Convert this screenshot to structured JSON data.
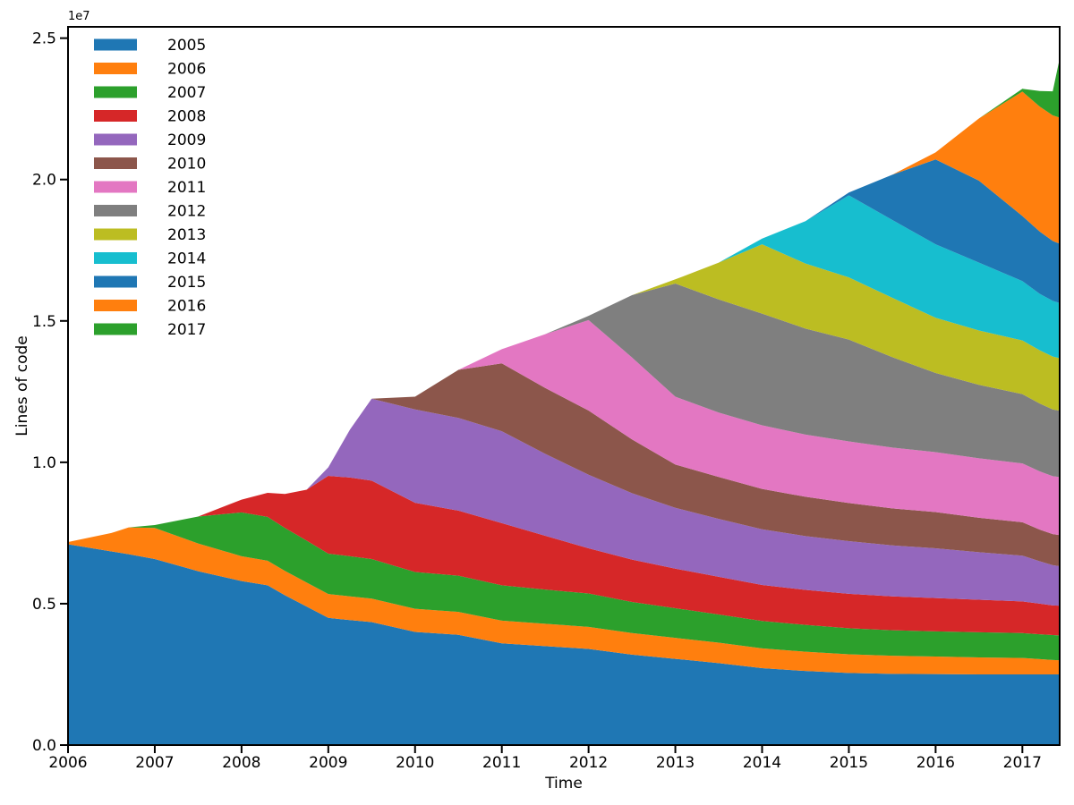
{
  "figure": {
    "background": "#ffffff"
  },
  "chart_data": {
    "type": "area",
    "stacked": true,
    "title": "",
    "xlabel": "Time",
    "ylabel": "Lines of code",
    "offset_text": "1e7",
    "grid": false,
    "legend_position": "upper left",
    "value_unit": "lines of code (values stored in millions)",
    "xlim": [
      2006,
      2017.43
    ],
    "ylim_millions": [
      0,
      25.4
    ],
    "x_ticks": [
      2006,
      2007,
      2008,
      2009,
      2010,
      2011,
      2012,
      2013,
      2014,
      2015,
      2016,
      2017
    ],
    "y_ticks_1e7": [
      0.0,
      0.5,
      1.0,
      1.5,
      2.0,
      2.5
    ],
    "y_tick_labels": [
      "0.0",
      "0.5",
      "1.0",
      "1.5",
      "2.0",
      "2.5"
    ],
    "x": [
      2006,
      2006.5,
      2006.7,
      2007,
      2007.5,
      2008,
      2008.3,
      2008.5,
      2008.75,
      2009,
      2009.25,
      2009.5,
      2010,
      2010.5,
      2011,
      2011.5,
      2012,
      2012.5,
      2013,
      2013.5,
      2014,
      2014.5,
      2015,
      2015.5,
      2016,
      2016.5,
      2017,
      2017.2,
      2017.35,
      2017.42
    ],
    "series": [
      {
        "name": "2005",
        "color": "#1f77b4",
        "values_millions": [
          7.1,
          6.85,
          6.75,
          6.58,
          6.15,
          5.8,
          5.65,
          5.3,
          4.9,
          4.5,
          4.42,
          4.35,
          4.0,
          3.9,
          3.6,
          3.5,
          3.4,
          3.2,
          3.05,
          2.9,
          2.72,
          2.62,
          2.55,
          2.52,
          2.51,
          2.5,
          2.5,
          2.5,
          2.5,
          2.5
        ]
      },
      {
        "name": "2006",
        "color": "#ff7f0e",
        "values_millions": [
          0.08,
          0.65,
          0.95,
          1.1,
          0.98,
          0.88,
          0.87,
          0.86,
          0.85,
          0.84,
          0.84,
          0.83,
          0.82,
          0.81,
          0.8,
          0.79,
          0.78,
          0.76,
          0.74,
          0.72,
          0.7,
          0.68,
          0.66,
          0.64,
          0.62,
          0.6,
          0.58,
          0.54,
          0.51,
          0.5
        ]
      },
      {
        "name": "2007",
        "color": "#2ca02c",
        "values_millions": [
          0,
          0,
          0,
          0.1,
          0.95,
          1.55,
          1.55,
          1.52,
          1.48,
          1.43,
          1.42,
          1.4,
          1.3,
          1.28,
          1.25,
          1.21,
          1.18,
          1.1,
          1.05,
          1.0,
          0.97,
          0.95,
          0.92,
          0.9,
          0.89,
          0.89,
          0.88,
          0.88,
          0.88,
          0.88
        ]
      },
      {
        "name": "2008",
        "color": "#d62728",
        "values_millions": [
          0,
          0,
          0,
          0,
          0,
          0.45,
          0.85,
          1.2,
          1.8,
          2.75,
          2.78,
          2.77,
          2.45,
          2.3,
          2.2,
          1.9,
          1.6,
          1.5,
          1.4,
          1.33,
          1.27,
          1.24,
          1.22,
          1.2,
          1.18,
          1.15,
          1.12,
          1.08,
          1.05,
          1.05
        ]
      },
      {
        "name": "2009",
        "color": "#9467bd",
        "values_millions": [
          0,
          0,
          0,
          0,
          0,
          0,
          0,
          0,
          0,
          0.3,
          1.7,
          2.9,
          3.3,
          3.28,
          3.25,
          2.9,
          2.6,
          2.35,
          2.15,
          2.05,
          1.97,
          1.9,
          1.86,
          1.8,
          1.76,
          1.68,
          1.62,
          1.5,
          1.42,
          1.4
        ]
      },
      {
        "name": "2010",
        "color": "#8c564b",
        "values_millions": [
          0,
          0,
          0,
          0,
          0,
          0,
          0,
          0,
          0,
          0,
          0,
          0,
          0.45,
          1.7,
          2.4,
          2.33,
          2.27,
          1.9,
          1.53,
          1.48,
          1.43,
          1.39,
          1.35,
          1.31,
          1.28,
          1.22,
          1.18,
          1.12,
          1.1,
          1.1
        ]
      },
      {
        "name": "2011",
        "color": "#e377c2",
        "values_millions": [
          0,
          0,
          0,
          0,
          0,
          0,
          0,
          0,
          0,
          0,
          0,
          0,
          0,
          0,
          0.5,
          1.9,
          3.2,
          2.9,
          2.4,
          2.28,
          2.25,
          2.2,
          2.18,
          2.15,
          2.12,
          2.1,
          2.08,
          2.06,
          2.05,
          2.05
        ]
      },
      {
        "name": "2012",
        "color": "#7f7f7f",
        "values_millions": [
          0,
          0,
          0,
          0,
          0,
          0,
          0,
          0,
          0,
          0,
          0,
          0,
          0,
          0,
          0,
          0,
          0.15,
          2.2,
          4.0,
          4.0,
          3.95,
          3.75,
          3.6,
          3.2,
          2.8,
          2.6,
          2.45,
          2.4,
          2.36,
          2.35
        ]
      },
      {
        "name": "2013",
        "color": "#bcbd22",
        "values_millions": [
          0,
          0,
          0,
          0,
          0,
          0,
          0,
          0,
          0,
          0,
          0,
          0,
          0,
          0,
          0,
          0,
          0,
          0,
          0.15,
          1.3,
          2.45,
          2.3,
          2.2,
          2.1,
          1.95,
          1.92,
          1.9,
          1.88,
          1.87,
          1.86
        ]
      },
      {
        "name": "2014",
        "color": "#17becf",
        "values_millions": [
          0,
          0,
          0,
          0,
          0,
          0,
          0,
          0,
          0,
          0,
          0,
          0,
          0,
          0,
          0,
          0,
          0,
          0,
          0,
          0,
          0.2,
          1.5,
          2.9,
          2.75,
          2.6,
          2.4,
          2.1,
          2.0,
          1.97,
          1.95
        ]
      },
      {
        "name": "2015",
        "color": "#1f77b4",
        "values_millions": [
          0,
          0,
          0,
          0,
          0,
          0,
          0,
          0,
          0,
          0,
          0,
          0,
          0,
          0,
          0,
          0,
          0,
          0,
          0,
          0,
          0,
          0,
          0.1,
          1.6,
          3.0,
          2.9,
          2.3,
          2.2,
          2.12,
          2.1
        ]
      },
      {
        "name": "2016",
        "color": "#ff7f0e",
        "values_millions": [
          0,
          0,
          0,
          0,
          0,
          0,
          0,
          0,
          0,
          0,
          0,
          0,
          0,
          0,
          0,
          0,
          0,
          0,
          0,
          0,
          0,
          0,
          0,
          0,
          0.25,
          2.2,
          4.4,
          4.42,
          4.44,
          4.46
        ]
      },
      {
        "name": "2017",
        "color": "#2ca02c",
        "values_millions": [
          0,
          0,
          0,
          0,
          0,
          0,
          0,
          0,
          0,
          0,
          0,
          0,
          0,
          0,
          0,
          0,
          0,
          0,
          0,
          0,
          0,
          0,
          0,
          0,
          0,
          0,
          0.1,
          0.55,
          0.85,
          1.94
        ]
      }
    ]
  }
}
